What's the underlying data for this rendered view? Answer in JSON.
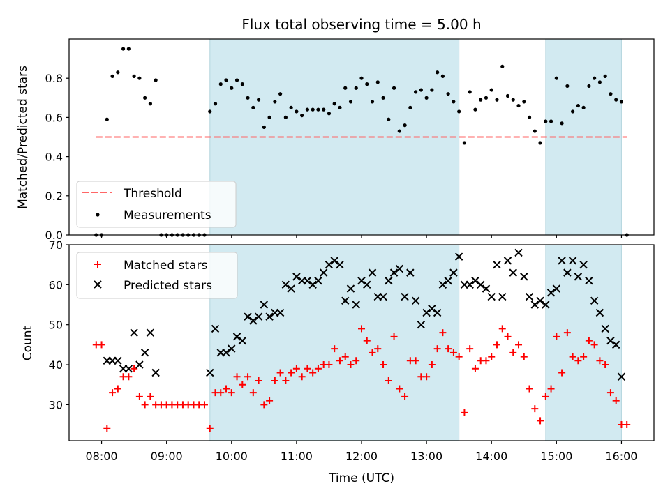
{
  "title": "Flux total observing time = 5.00 h",
  "colors": {
    "band": "#add8e6",
    "threshold": "#ff6666",
    "measurements": "#000000",
    "matched": "#ff0000",
    "predicted": "#000000"
  },
  "chart_data": [
    {
      "type": "scatter",
      "ylabel": "Matched/Predicted stars",
      "ylim": [
        0.0,
        1.0
      ],
      "yticks": [
        "0.0",
        "0.2",
        "0.4",
        "0.6",
        "0.8"
      ],
      "xlim_hours": [
        7.5,
        16.5
      ],
      "shaded_intervals": [
        [
          "09:40",
          "13:30"
        ],
        [
          "14:50",
          "16:00"
        ]
      ],
      "legend_position": "lower-left",
      "threshold": {
        "name": "Threshold",
        "value": 0.5,
        "x_range": [
          "07:55",
          "16:05"
        ]
      },
      "series": [
        {
          "name": "Measurements",
          "x": [
            "07:55",
            "08:00",
            "08:05",
            "08:10",
            "08:15",
            "08:20",
            "08:25",
            "08:30",
            "08:35",
            "08:40",
            "08:45",
            "08:50",
            "08:55",
            "09:00",
            "09:05",
            "09:10",
            "09:15",
            "09:20",
            "09:25",
            "09:30",
            "09:35",
            "09:40",
            "09:45",
            "09:50",
            "09:55",
            "10:00",
            "10:05",
            "10:10",
            "10:15",
            "10:20",
            "10:25",
            "10:30",
            "10:35",
            "10:40",
            "10:45",
            "10:50",
            "10:55",
            "11:00",
            "11:05",
            "11:10",
            "11:15",
            "11:20",
            "11:25",
            "11:30",
            "11:35",
            "11:40",
            "11:45",
            "11:50",
            "11:55",
            "12:00",
            "12:05",
            "12:10",
            "12:15",
            "12:20",
            "12:25",
            "12:30",
            "12:35",
            "12:40",
            "12:45",
            "12:50",
            "12:55",
            "13:00",
            "13:05",
            "13:10",
            "13:15",
            "13:20",
            "13:25",
            "13:30",
            "13:35",
            "13:40",
            "13:45",
            "13:50",
            "13:55",
            "14:00",
            "14:05",
            "14:10",
            "14:15",
            "14:20",
            "14:25",
            "14:30",
            "14:35",
            "14:40",
            "14:45",
            "14:50",
            "14:55",
            "15:00",
            "15:05",
            "15:10",
            "15:15",
            "15:20",
            "15:25",
            "15:30",
            "15:35",
            "15:40",
            "15:45",
            "15:50",
            "15:55",
            "16:00",
            "16:05"
          ],
          "y": [
            0.0,
            0.0,
            0.59,
            0.81,
            0.83,
            0.95,
            0.95,
            0.81,
            0.8,
            0.7,
            0.67,
            0.79,
            0.0,
            0.0,
            0.0,
            0.0,
            0.0,
            0.0,
            0.0,
            0.0,
            0.0,
            0.63,
            0.67,
            0.77,
            0.79,
            0.75,
            0.79,
            0.77,
            0.7,
            0.65,
            0.69,
            0.55,
            0.6,
            0.68,
            0.72,
            0.6,
            0.65,
            0.63,
            0.61,
            0.64,
            0.64,
            0.64,
            0.64,
            0.62,
            0.67,
            0.65,
            0.75,
            0.68,
            0.75,
            0.8,
            0.77,
            0.68,
            0.78,
            0.7,
            0.59,
            0.75,
            0.53,
            0.56,
            0.65,
            0.73,
            0.74,
            0.7,
            0.74,
            0.83,
            0.81,
            0.72,
            0.68,
            0.63,
            0.47,
            0.73,
            0.64,
            0.69,
            0.7,
            0.74,
            0.69,
            0.86,
            0.71,
            0.69,
            0.66,
            0.68,
            0.6,
            0.53,
            0.47,
            0.58,
            0.58,
            0.8,
            0.57,
            0.76,
            0.63,
            0.66,
            0.65,
            0.76,
            0.8,
            0.78,
            0.81,
            0.72,
            0.69,
            0.68,
            0.0
          ]
        }
      ]
    },
    {
      "type": "scatter",
      "xlabel": "Time (UTC)",
      "ylabel": "Count",
      "ylim": [
        21,
        70
      ],
      "yticks": [
        "30",
        "40",
        "50",
        "60",
        "70"
      ],
      "xticks": [
        "08:00",
        "09:00",
        "10:00",
        "11:00",
        "12:00",
        "13:00",
        "14:00",
        "15:00",
        "16:00"
      ],
      "legend_position": "upper-left",
      "series": [
        {
          "name": "Matched stars",
          "marker": "+",
          "x": [
            "07:55",
            "08:00",
            "08:05",
            "08:10",
            "08:15",
            "08:20",
            "08:25",
            "08:30",
            "08:35",
            "08:40",
            "08:45",
            "08:50",
            "08:55",
            "09:00",
            "09:05",
            "09:10",
            "09:15",
            "09:20",
            "09:25",
            "09:30",
            "09:35",
            "09:40",
            "09:45",
            "09:50",
            "09:55",
            "10:00",
            "10:05",
            "10:10",
            "10:15",
            "10:20",
            "10:25",
            "10:30",
            "10:35",
            "10:40",
            "10:45",
            "10:50",
            "10:55",
            "11:00",
            "11:05",
            "11:10",
            "11:15",
            "11:20",
            "11:25",
            "11:30",
            "11:35",
            "11:40",
            "11:45",
            "11:50",
            "11:55",
            "12:00",
            "12:05",
            "12:10",
            "12:15",
            "12:20",
            "12:25",
            "12:30",
            "12:35",
            "12:40",
            "12:45",
            "12:50",
            "12:55",
            "13:00",
            "13:05",
            "13:10",
            "13:15",
            "13:20",
            "13:25",
            "13:30",
            "13:35",
            "13:40",
            "13:45",
            "13:50",
            "13:55",
            "14:00",
            "14:05",
            "14:10",
            "14:15",
            "14:20",
            "14:25",
            "14:30",
            "14:35",
            "14:40",
            "14:45",
            "14:50",
            "14:55",
            "15:00",
            "15:05",
            "15:10",
            "15:15",
            "15:20",
            "15:25",
            "15:30",
            "15:35",
            "15:40",
            "15:45",
            "15:50",
            "15:55",
            "16:00",
            "16:05"
          ],
          "y": [
            45,
            45,
            24,
            33,
            34,
            37,
            37,
            39,
            32,
            30,
            32,
            30,
            30,
            30,
            30,
            30,
            30,
            30,
            30,
            30,
            30,
            24,
            33,
            33,
            34,
            33,
            37,
            35,
            37,
            33,
            36,
            30,
            31,
            36,
            38,
            36,
            38,
            39,
            37,
            39,
            38,
            39,
            40,
            40,
            44,
            41,
            42,
            40,
            41,
            49,
            46,
            43,
            44,
            40,
            36,
            47,
            34,
            32,
            41,
            41,
            37,
            37,
            40,
            44,
            48,
            44,
            43,
            42,
            28,
            44,
            39,
            41,
            41,
            42,
            45,
            49,
            47,
            43,
            45,
            42,
            34,
            29,
            26,
            32,
            34,
            47,
            38,
            48,
            42,
            41,
            42,
            46,
            45,
            41,
            40,
            33,
            31,
            25,
            25
          ]
        },
        {
          "name": "Predicted stars",
          "marker": "x",
          "x": [
            "08:05",
            "08:10",
            "08:15",
            "08:20",
            "08:25",
            "08:30",
            "08:35",
            "08:40",
            "08:45",
            "08:50",
            "08:55",
            "09:00",
            "09:05",
            "09:10",
            "09:15",
            "09:20",
            "09:25",
            "09:30",
            "09:35",
            "09:40",
            "09:45",
            "09:50",
            "09:55",
            "10:00",
            "10:05",
            "10:10",
            "10:15",
            "10:20",
            "10:25",
            "10:30",
            "10:35",
            "10:40",
            "10:45",
            "10:50",
            "10:55",
            "11:00",
            "11:05",
            "11:10",
            "11:15",
            "11:20",
            "11:25",
            "11:30",
            "11:35",
            "11:40",
            "11:45",
            "11:50",
            "11:55",
            "12:00",
            "12:05",
            "12:10",
            "12:15",
            "12:20",
            "12:25",
            "12:30",
            "12:35",
            "12:40",
            "12:45",
            "12:50",
            "12:55",
            "13:00",
            "13:05",
            "13:10",
            "13:15",
            "13:20",
            "13:25",
            "13:30",
            "13:35",
            "13:40",
            "13:45",
            "13:50",
            "13:55",
            "14:00",
            "14:05",
            "14:10",
            "14:15",
            "14:20",
            "14:25",
            "14:30",
            "14:35",
            "14:40",
            "14:45",
            "14:50",
            "14:55",
            "15:00",
            "15:05",
            "15:10",
            "15:15",
            "15:20",
            "15:25",
            "15:30",
            "15:35",
            "15:40",
            "15:45",
            "15:50",
            "15:55",
            "16:00",
            "16:05"
          ],
          "y": [
            41,
            41,
            41,
            39,
            39,
            48,
            40,
            43,
            48,
            38,
            null,
            null,
            null,
            null,
            null,
            null,
            null,
            null,
            null,
            38,
            49,
            43,
            43,
            44,
            47,
            46,
            52,
            51,
            52,
            55,
            52,
            53,
            53,
            60,
            59,
            62,
            61,
            61,
            60,
            61,
            63,
            65,
            66,
            65,
            56,
            59,
            55,
            61,
            60,
            63,
            57,
            57,
            61,
            63,
            64,
            57,
            63,
            56,
            50,
            53,
            54,
            53,
            60,
            61,
            63,
            67,
            60,
            60,
            61,
            60,
            59,
            57,
            65,
            57,
            66,
            63,
            68,
            62,
            57,
            55,
            56,
            55,
            58,
            59,
            66,
            63,
            66,
            62,
            65,
            61,
            56,
            53,
            49,
            46,
            45,
            37,
            null
          ]
        }
      ]
    }
  ]
}
